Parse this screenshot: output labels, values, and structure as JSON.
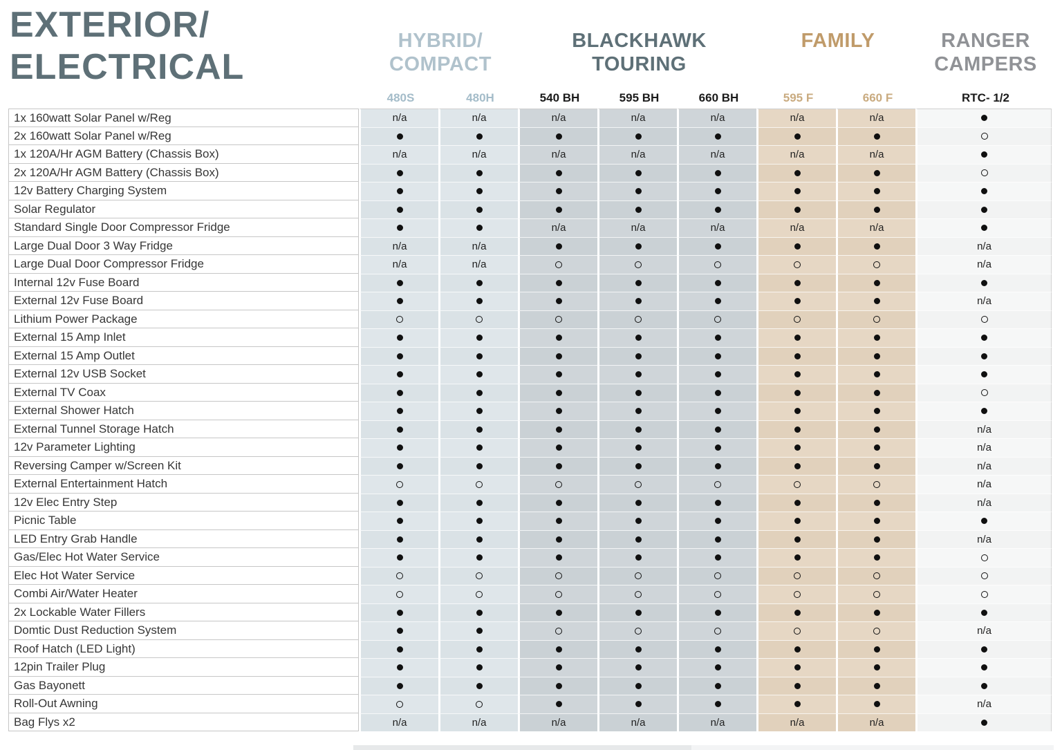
{
  "page": {
    "title_line1": "EXTERIOR/",
    "title_line2": "ELECTRICAL"
  },
  "colors": {
    "title": "#5e7077",
    "hybrid_accent": "#b0c2cc",
    "hybrid_models_accent": "#a4bcc9",
    "blackhawk_accent": "#5e7077",
    "family_accent": "#c09b6a",
    "family_models_accent": "#c9ab80",
    "ranger_accent": "#909296",
    "hybrid_band": "#dfe6ea",
    "blackhawk_band": "#cfd5d9",
    "family_band": "#e6d7c4",
    "ranger_band": "#f6f7f7"
  },
  "groups": [
    {
      "label_lines": [
        "HYBRID/",
        "COMPACT"
      ],
      "models": [
        "480S",
        "480H"
      ]
    },
    {
      "label_lines": [
        "BLACKHAWK",
        "TOURING"
      ],
      "models": [
        "540 BH",
        "595 BH",
        "660 BH"
      ]
    },
    {
      "label_lines": [
        "FAMILY"
      ],
      "models": [
        "595 F",
        "660 F"
      ]
    },
    {
      "label_lines": [
        "RANGER",
        "CAMPERS"
      ],
      "models": [
        "RTC- 1/2"
      ]
    }
  ],
  "table": {
    "columns": [
      "480S",
      "480H",
      "540 BH",
      "595 BH",
      "660 BH",
      "595 F",
      "660 F",
      "RTC- 1/2"
    ],
    "symbols": {
      "dot": "●",
      "circle": "○",
      "na": "n/a"
    },
    "rows": [
      {
        "feature": "1x 160watt Solar Panel w/Reg",
        "values": [
          "na",
          "na",
          "na",
          "na",
          "na",
          "na",
          "na",
          "dot"
        ]
      },
      {
        "feature": "2x 160watt Solar Panel w/Reg",
        "values": [
          "dot",
          "dot",
          "dot",
          "dot",
          "dot",
          "dot",
          "dot",
          "circle"
        ]
      },
      {
        "feature": "1x 120A/Hr AGM Battery (Chassis Box)",
        "values": [
          "na",
          "na",
          "na",
          "na",
          "na",
          "na",
          "na",
          "dot"
        ]
      },
      {
        "feature": "2x 120A/Hr AGM Battery (Chassis Box)",
        "values": [
          "dot",
          "dot",
          "dot",
          "dot",
          "dot",
          "dot",
          "dot",
          "circle"
        ]
      },
      {
        "feature": "12v Battery Charging System",
        "values": [
          "dot",
          "dot",
          "dot",
          "dot",
          "dot",
          "dot",
          "dot",
          "dot"
        ]
      },
      {
        "feature": "Solar Regulator",
        "values": [
          "dot",
          "dot",
          "dot",
          "dot",
          "dot",
          "dot",
          "dot",
          "dot"
        ]
      },
      {
        "feature": "Standard Single Door Compressor Fridge",
        "values": [
          "dot",
          "dot",
          "na",
          "na",
          "na",
          "na",
          "na",
          "dot"
        ]
      },
      {
        "feature": "Large Dual Door 3 Way Fridge",
        "values": [
          "na",
          "na",
          "dot",
          "dot",
          "dot",
          "dot",
          "dot",
          "na"
        ]
      },
      {
        "feature": "Large Dual Door Compressor Fridge",
        "values": [
          "na",
          "na",
          "circle",
          "circle",
          "circle",
          "circle",
          "circle",
          "na"
        ]
      },
      {
        "feature": "Internal 12v Fuse Board",
        "values": [
          "dot",
          "dot",
          "dot",
          "dot",
          "dot",
          "dot",
          "dot",
          "dot"
        ]
      },
      {
        "feature": "External 12v Fuse Board",
        "values": [
          "dot",
          "dot",
          "dot",
          "dot",
          "dot",
          "dot",
          "dot",
          "na"
        ]
      },
      {
        "feature": "Lithium Power Package",
        "values": [
          "circle",
          "circle",
          "circle",
          "circle",
          "circle",
          "circle",
          "circle",
          "circle"
        ]
      },
      {
        "feature": "External 15 Amp Inlet",
        "values": [
          "dot",
          "dot",
          "dot",
          "dot",
          "dot",
          "dot",
          "dot",
          "dot"
        ]
      },
      {
        "feature": "External 15 Amp Outlet",
        "values": [
          "dot",
          "dot",
          "dot",
          "dot",
          "dot",
          "dot",
          "dot",
          "dot"
        ]
      },
      {
        "feature": "External 12v USB Socket",
        "values": [
          "dot",
          "dot",
          "dot",
          "dot",
          "dot",
          "dot",
          "dot",
          "dot"
        ]
      },
      {
        "feature": "External TV Coax",
        "values": [
          "dot",
          "dot",
          "dot",
          "dot",
          "dot",
          "dot",
          "dot",
          "circle"
        ]
      },
      {
        "feature": "External Shower Hatch",
        "values": [
          "dot",
          "dot",
          "dot",
          "dot",
          "dot",
          "dot",
          "dot",
          "dot"
        ]
      },
      {
        "feature": "External Tunnel Storage Hatch",
        "values": [
          "dot",
          "dot",
          "dot",
          "dot",
          "dot",
          "dot",
          "dot",
          "na"
        ]
      },
      {
        "feature": "12v Parameter Lighting",
        "values": [
          "dot",
          "dot",
          "dot",
          "dot",
          "dot",
          "dot",
          "dot",
          "na"
        ]
      },
      {
        "feature": "Reversing Camper w/Screen Kit",
        "values": [
          "dot",
          "dot",
          "dot",
          "dot",
          "dot",
          "dot",
          "dot",
          "na"
        ]
      },
      {
        "feature": "External Entertainment Hatch",
        "values": [
          "circle",
          "circle",
          "circle",
          "circle",
          "circle",
          "circle",
          "circle",
          "na"
        ]
      },
      {
        "feature": "12v Elec Entry Step",
        "values": [
          "dot",
          "dot",
          "dot",
          "dot",
          "dot",
          "dot",
          "dot",
          "na"
        ]
      },
      {
        "feature": "Picnic Table",
        "values": [
          "dot",
          "dot",
          "dot",
          "dot",
          "dot",
          "dot",
          "dot",
          "dot"
        ]
      },
      {
        "feature": "LED Entry Grab Handle",
        "values": [
          "dot",
          "dot",
          "dot",
          "dot",
          "dot",
          "dot",
          "dot",
          "na"
        ]
      },
      {
        "feature": "Gas/Elec Hot Water Service",
        "values": [
          "dot",
          "dot",
          "dot",
          "dot",
          "dot",
          "dot",
          "dot",
          "circle"
        ]
      },
      {
        "feature": "Elec Hot Water Service",
        "values": [
          "circle",
          "circle",
          "circle",
          "circle",
          "circle",
          "circle",
          "circle",
          "circle"
        ]
      },
      {
        "feature": "Combi Air/Water Heater",
        "values": [
          "circle",
          "circle",
          "circle",
          "circle",
          "circle",
          "circle",
          "circle",
          "circle"
        ]
      },
      {
        "feature": "2x Lockable Water Fillers",
        "values": [
          "dot",
          "dot",
          "dot",
          "dot",
          "dot",
          "dot",
          "dot",
          "dot"
        ]
      },
      {
        "feature": "Domtic Dust Reduction System",
        "values": [
          "dot",
          "dot",
          "circle",
          "circle",
          "circle",
          "circle",
          "circle",
          "na"
        ]
      },
      {
        "feature": "Roof Hatch (LED Light)",
        "values": [
          "dot",
          "dot",
          "dot",
          "dot",
          "dot",
          "dot",
          "dot",
          "dot"
        ]
      },
      {
        "feature": "12pin Trailer Plug",
        "values": [
          "dot",
          "dot",
          "dot",
          "dot",
          "dot",
          "dot",
          "dot",
          "dot"
        ]
      },
      {
        "feature": "Gas Bayonett",
        "values": [
          "dot",
          "dot",
          "dot",
          "dot",
          "dot",
          "dot",
          "dot",
          "dot"
        ]
      },
      {
        "feature": "Roll-Out Awning",
        "values": [
          "circle",
          "circle",
          "dot",
          "dot",
          "dot",
          "dot",
          "dot",
          "na"
        ]
      },
      {
        "feature": "Bag Flys x2",
        "values": [
          "na",
          "na",
          "na",
          "na",
          "na",
          "na",
          "na",
          "dot"
        ]
      }
    ]
  }
}
